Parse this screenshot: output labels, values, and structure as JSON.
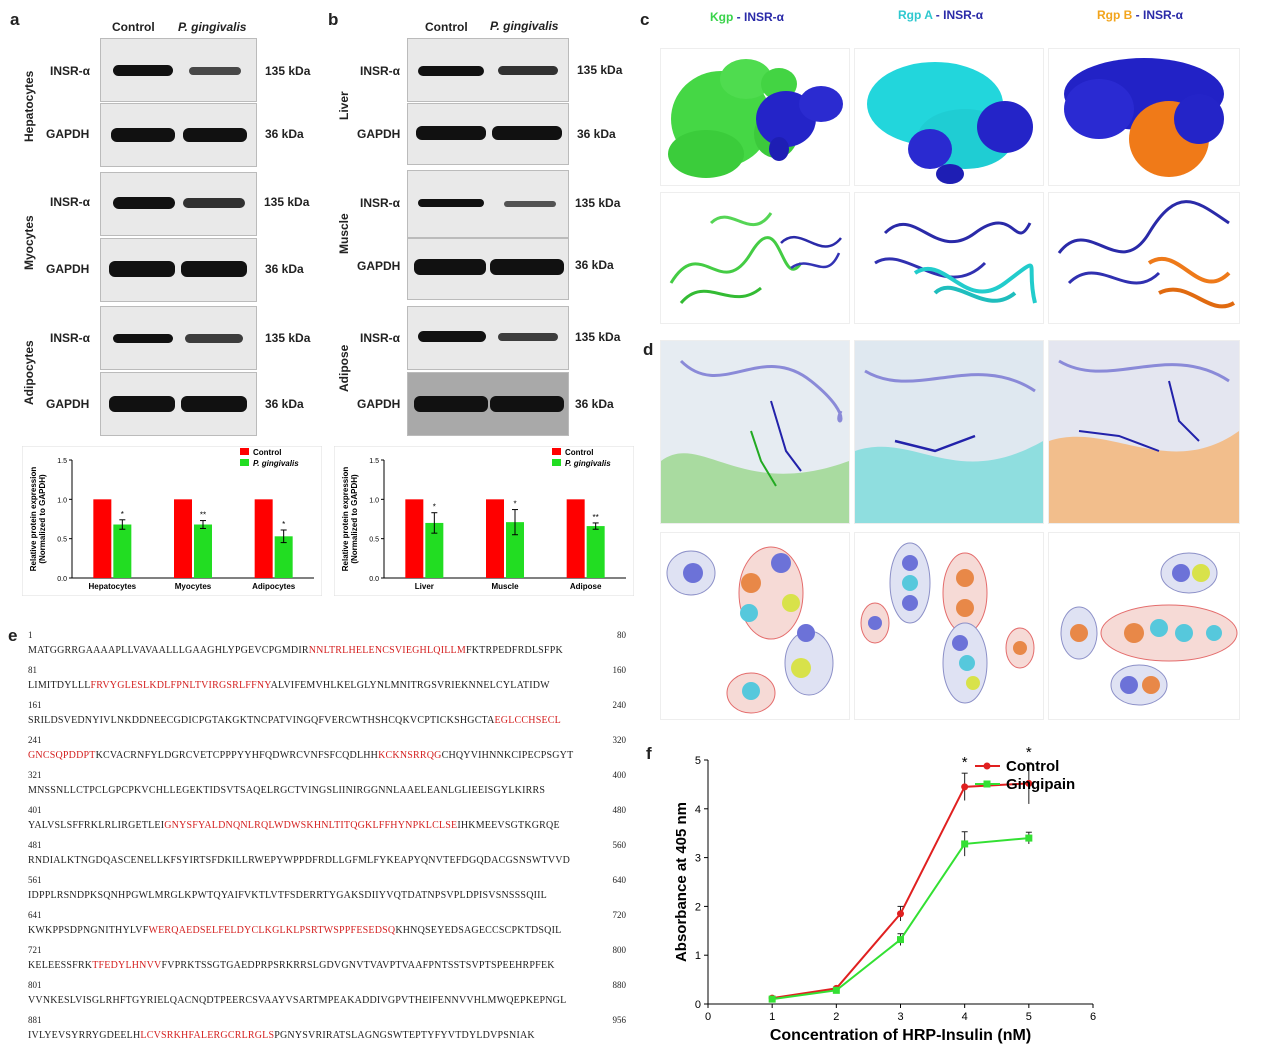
{
  "panels": {
    "a": "a",
    "b": "b",
    "c": "c",
    "d": "d",
    "e": "e",
    "f": "f"
  },
  "western": {
    "control": "Control",
    "pg": "P. gingivalis",
    "insr": "INSR-α",
    "gapdh": "GAPDH",
    "kda135": "135 kDa",
    "kda36": "36 kDa",
    "a_groups": [
      "Hepatocytes",
      "Myocytes",
      "Adipocytes"
    ],
    "b_groups": [
      "Liver",
      "Muscle",
      "Adipose"
    ]
  },
  "bar_a": {
    "legend": [
      "Control",
      "P. gingivalis"
    ],
    "ylabel1": "Relative protein expression",
    "ylabel2": "(Normalized to GAPDH)",
    "yticks": [
      "0.0",
      "0.5",
      "1.0",
      "1.5"
    ],
    "sig": [
      "*",
      "**",
      "*"
    ]
  },
  "bar_b": {
    "legend": [
      "Control",
      "P. gingivalis"
    ],
    "ylabel1": "Relative protein expression",
    "ylabel2": "(Normalized to GAPDH)",
    "yticks": [
      "0.0",
      "0.5",
      "1.0",
      "1.5"
    ],
    "sig": [
      "*",
      "*",
      "**"
    ]
  },
  "c_titles": [
    {
      "a": "Kgp",
      "b": "INSR-α",
      "colorA": "#39d34a"
    },
    {
      "a": "Rgp A",
      "b": "INSR-α",
      "colorA": "#2fc8cf"
    },
    {
      "a": "Rgp B",
      "b": "INSR-α",
      "colorA": "#f2a41c"
    }
  ],
  "insr_color": "#2a2aa8",
  "seq": {
    "lines": [
      {
        "s": "1",
        "e": "80",
        "t": "MATGGRRGAAAAPLLVAVAALLLGAAGHLYPGEVCPGMDIR",
        "r": "NNLTRLHELENCSVIEGHLQILLM",
        "t2": "FKTRPEDFRDLSFPK"
      },
      {
        "s": "81",
        "e": "160",
        "t": "LIMITDYLLL",
        "r": "FRVYGLESLKDLFPNLTVIRGSRLFFNY",
        "t2": "ALVIFEMVHLKELGLYNLMNITRGSVRIEKNNELCYLATIDW"
      },
      {
        "s": "161",
        "e": "240",
        "t": "SRILDSVEDNYIVLNKDDNEECGDICPGTAKGKTNCPATVINGQFVERCWTHSHCQKVCPTICKSHGCTA",
        "r": "EGLCCHSECL",
        "t2": ""
      },
      {
        "s": "241",
        "e": "320",
        "t": "",
        "r": "GNCSQPDDPT",
        "t2": "KCVACRNFYLDGRCVETCPPPYYHFQDWRCVNFSFCQDLHH",
        "r3": "KCKNSRRQG",
        "t3": "CHQYVIHNNKCIPECPSGYT"
      },
      {
        "s": "321",
        "e": "400",
        "t": "MNSSNLLCTPCLGPCPKVCHLLEGEKTIDSVTSAQELRGCTVINGSLIINIRGGNNLAAELEANLGLIEEISGYLKIRRS",
        "r": "",
        "t2": ""
      },
      {
        "s": "401",
        "e": "480",
        "t": "YALVSLSFFRKLRLIRGETLEI",
        "r": "GNYSFYALDNQNLRQLWDWSKHNLTITQGKLFFHYNPKLCLSE",
        "t2": "IHKMEEVSGTKGRQE"
      },
      {
        "s": "481",
        "e": "560",
        "t": "RNDIALKTNGDQASCENELLKFSYIRTSFDKILLRWEPYWPPDFRDLLGFMLFYKEAPYQNVTEFDGQDACGSNSWTVVD",
        "r": "",
        "t2": ""
      },
      {
        "s": "561",
        "e": "640",
        "t": "IDPPLRSNDPKSQNHPGWLMRGLKPWTQYAIFVKTLVTFSDERRTYGAKSDIIYVQTDATNPSVPLDPISVSNSSSQIIL",
        "r": "",
        "t2": ""
      },
      {
        "s": "641",
        "e": "720",
        "t": "KWKPPSDPNGNITHYLVF",
        "r": "WERQAEDSELFELDYCLKGLKLPSRTWSPPFESEDSQ",
        "t2": "KHNQSEYEDSAGECCSCPKTDSQIL"
      },
      {
        "s": "721",
        "e": "800",
        "t": "KELEESSFRK",
        "r": "TFEDYLHNVV",
        "t2": "FVPRKTSSGTGAEDPRPSRKRRSLGDVGNVTVAVPTVAAFPNTSSTSVPTSPEEHRPFEK"
      },
      {
        "s": "801",
        "e": "880",
        "t": "VVNKESLVISGLRHFTGYRIELQACNQDTPEERCSVAAYVSARTMPEAKADDIVGPVTHEIFENNVVHLMWQEPKEPNGL",
        "r": "",
        "t2": ""
      },
      {
        "s": "881",
        "e": "956",
        "t": "IVLYEVSYRRYGDEELH",
        "r": "LCVSRKHFALERGCRLRGLS",
        "t2": "PGNYSVRIRATSLAGNGSWTEPTYFYVTDYLDVPSNIAK"
      }
    ]
  },
  "chart_data": [
    {
      "type": "bar",
      "panel": "a",
      "categories": [
        "Hepatocytes",
        "Myocytes",
        "Adipocytes"
      ],
      "series": [
        {
          "name": "Control",
          "values": [
            1.0,
            1.0,
            1.0
          ]
        },
        {
          "name": "P. gingivalis",
          "values": [
            0.68,
            0.68,
            0.53
          ]
        }
      ],
      "errors": [
        0.06,
        0.05,
        0.08
      ],
      "ylabel": "Relative protein expression (Normalized to GAPDH)",
      "ylim": [
        0,
        1.5
      ],
      "colors": [
        "#ff0000",
        "#22dd22"
      ]
    },
    {
      "type": "bar",
      "panel": "b",
      "categories": [
        "Liver",
        "Muscle",
        "Adipose"
      ],
      "series": [
        {
          "name": "Control",
          "values": [
            1.0,
            1.0,
            1.0
          ]
        },
        {
          "name": "P. gingivalis",
          "values": [
            0.7,
            0.71,
            0.66
          ]
        }
      ],
      "errors": [
        0.13,
        0.16,
        0.04
      ],
      "ylabel": "Relative protein expression (Normalized to GAPDH)",
      "ylim": [
        0,
        1.5
      ],
      "colors": [
        "#ff0000",
        "#22dd22"
      ]
    },
    {
      "type": "line",
      "panel": "f",
      "x": [
        1,
        2,
        3,
        4,
        5
      ],
      "series": [
        {
          "name": "Control",
          "values": [
            0.12,
            0.32,
            1.85,
            4.45,
            4.52
          ],
          "errors": [
            0.03,
            0.03,
            0.15,
            0.28,
            0.42
          ],
          "color": "#e02020"
        },
        {
          "name": "Gingipain",
          "values": [
            0.1,
            0.28,
            1.32,
            3.28,
            3.4
          ],
          "errors": [
            0.03,
            0.03,
            0.12,
            0.25,
            0.12
          ],
          "color": "#33e033"
        }
      ],
      "sig": [
        "*",
        "*"
      ],
      "sig_x": [
        4,
        5
      ],
      "xlabel": "Concentration of HRP-Insulin (nM)",
      "ylabel": "Absorbance at 405 nm",
      "xlim": [
        0,
        6
      ],
      "ylim": [
        0,
        5
      ],
      "xticks": [
        "0",
        "1",
        "2",
        "3",
        "4",
        "5",
        "6"
      ],
      "yticks": [
        "0",
        "1",
        "2",
        "3",
        "4",
        "5"
      ]
    }
  ]
}
